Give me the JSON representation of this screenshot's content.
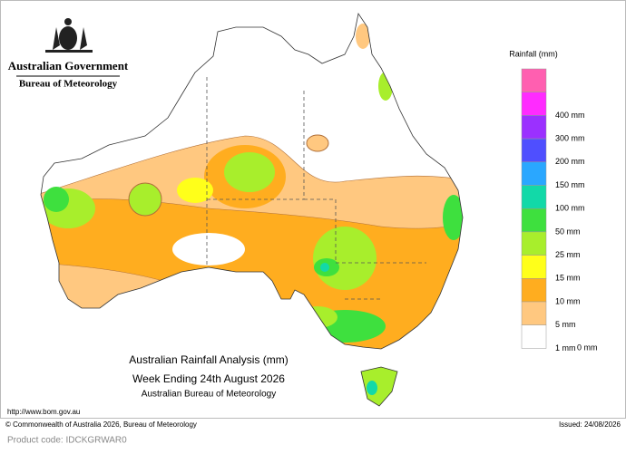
{
  "header": {
    "government": "Australian Government",
    "agency": "Bureau of Meteorology"
  },
  "legend": {
    "title": "Rainfall (mm)",
    "items": [
      {
        "label": null,
        "color": "#ff5fb0"
      },
      {
        "label": "400 mm",
        "color": "#ff2bff"
      },
      {
        "label": "300 mm",
        "color": "#9b30ff"
      },
      {
        "label": "200 mm",
        "color": "#4f4fff"
      },
      {
        "label": "150 mm",
        "color": "#2aa7ff"
      },
      {
        "label": "100 mm",
        "color": "#12d9a8"
      },
      {
        "label": "50 mm",
        "color": "#3ee03e"
      },
      {
        "label": "25 mm",
        "color": "#a8ee2c"
      },
      {
        "label": "15 mm",
        "color": "#ffff1a"
      },
      {
        "label": "10 mm",
        "color": "#ffad1f"
      },
      {
        "label": "5 mm",
        "color": "#ffc880"
      },
      {
        "label": "1 mm",
        "color": "#ffffff"
      }
    ],
    "bottom_label": "0 mm"
  },
  "map_title": {
    "line1": "Australian Rainfall Analysis (mm)",
    "line2": "Week Ending 24th August 2026",
    "line3": "Australian Bureau of Meteorology"
  },
  "footer": {
    "url": "http://www.bom.gov.au",
    "copyright": "© Commonwealth of Australia 2026, Bureau of Meteorology",
    "issued": "Issued: 24/08/2026"
  },
  "product_code": "Product code: IDCKGRWAR0"
}
